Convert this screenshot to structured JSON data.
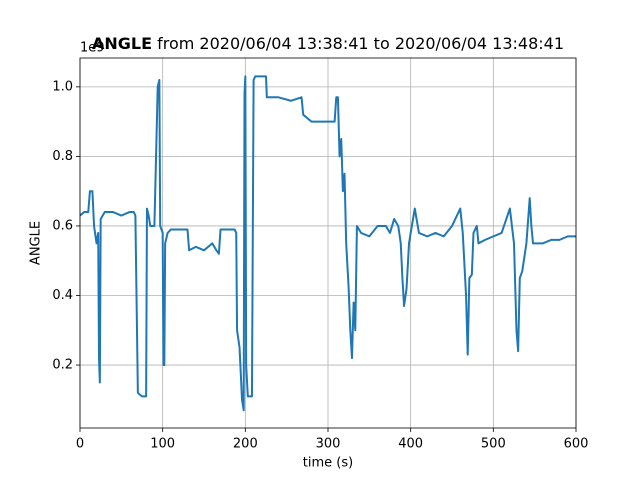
{
  "chart_data": {
    "type": "line",
    "title_bold": "ANGLE",
    "title": "from 2020/06/04 13:38:41 to 2020/06/04 13:48:41",
    "x_label": "time (s)",
    "y_label": "ANGLE",
    "y_offset": "1e9",
    "color": "#1f77b4",
    "grid": true,
    "xlim": [
      0,
      600
    ],
    "xticks": [
      0,
      100,
      200,
      300,
      400,
      500,
      600
    ],
    "ylim": [
      0.019,
      1.083
    ],
    "yticks": [
      0.2,
      0.4,
      0.6,
      0.8,
      {
        "value": 1,
        "label": "1.0"
      }
    ],
    "x": [
      0,
      5,
      10,
      12,
      15,
      17,
      20,
      22,
      23,
      24,
      25,
      30,
      40,
      50,
      60,
      65,
      67,
      70,
      75,
      80,
      81,
      83,
      85,
      90,
      94,
      96,
      97,
      100,
      101,
      102,
      103,
      106,
      110,
      120,
      130,
      132,
      140,
      150,
      160,
      165,
      168,
      170,
      180,
      187,
      189,
      190,
      193,
      196,
      198,
      199,
      200,
      201,
      203,
      208,
      210,
      212,
      225,
      226,
      240,
      255,
      268,
      270,
      280,
      295,
      305,
      308,
      310,
      312,
      314,
      316,
      318,
      320,
      322,
      325,
      327,
      329,
      331,
      333,
      335,
      340,
      350,
      360,
      370,
      375,
      380,
      385,
      388,
      390,
      392,
      395,
      398,
      400,
      405,
      410,
      420,
      430,
      440,
      450,
      460,
      463,
      467,
      469,
      471,
      474,
      476,
      480,
      482,
      490,
      500,
      510,
      520,
      525,
      528,
      530,
      532,
      535,
      540,
      544,
      546,
      548,
      550,
      560,
      570,
      580,
      590,
      600
    ],
    "values": [
      0.63,
      0.64,
      0.64,
      0.7,
      0.7,
      0.6,
      0.55,
      0.58,
      0.22,
      0.15,
      0.62,
      0.64,
      0.64,
      0.63,
      0.64,
      0.64,
      0.63,
      0.12,
      0.11,
      0.11,
      0.65,
      0.63,
      0.6,
      0.6,
      1.0,
      1.02,
      0.6,
      0.58,
      0.2,
      0.2,
      0.55,
      0.58,
      0.59,
      0.59,
      0.59,
      0.53,
      0.54,
      0.53,
      0.55,
      0.53,
      0.52,
      0.59,
      0.59,
      0.59,
      0.58,
      0.3,
      0.25,
      0.1,
      0.07,
      0.98,
      1.03,
      0.2,
      0.11,
      0.11,
      1.02,
      1.03,
      1.03,
      0.97,
      0.97,
      0.96,
      0.97,
      0.92,
      0.9,
      0.9,
      0.9,
      0.9,
      0.97,
      0.97,
      0.8,
      0.85,
      0.7,
      0.75,
      0.55,
      0.42,
      0.3,
      0.22,
      0.38,
      0.3,
      0.6,
      0.58,
      0.57,
      0.6,
      0.6,
      0.58,
      0.62,
      0.6,
      0.55,
      0.45,
      0.37,
      0.42,
      0.55,
      0.58,
      0.65,
      0.58,
      0.57,
      0.58,
      0.57,
      0.6,
      0.65,
      0.58,
      0.4,
      0.23,
      0.45,
      0.46,
      0.58,
      0.6,
      0.55,
      0.56,
      0.57,
      0.58,
      0.65,
      0.55,
      0.3,
      0.24,
      0.45,
      0.47,
      0.55,
      0.68,
      0.6,
      0.55,
      0.55,
      0.55,
      0.56,
      0.56,
      0.57,
      0.57
    ]
  }
}
